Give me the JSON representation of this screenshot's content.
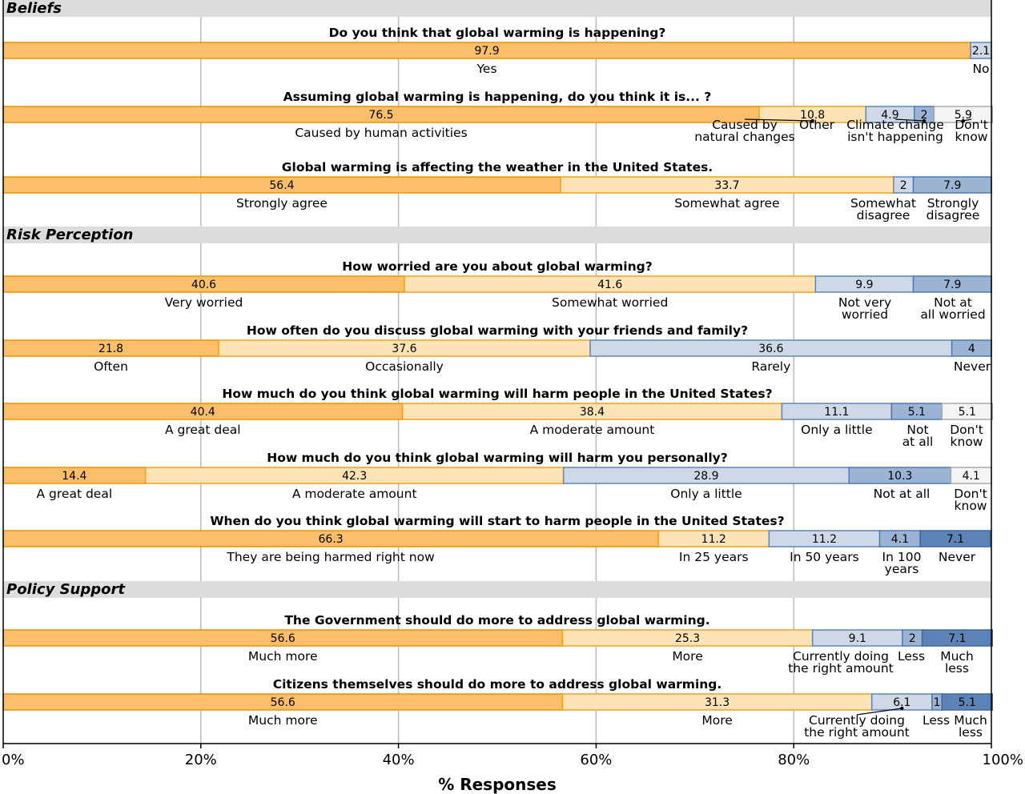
{
  "colors": {
    "c0": "#fbbf6b",
    "c0_edge": "#ef9200",
    "c1": "#fde3b6",
    "c1_edge": "#f1a21f",
    "c2": "#cfd8e6",
    "c2_edge": "#5f86b7",
    "c3": "#9cb4d4",
    "c3_edge": "#4f79ad",
    "c4": "#5c82b6",
    "c4_edge": "#3d67a0",
    "cdk": "#f4f4f4",
    "cdk_edge": "#a9a9a9",
    "section_bg": "#dcdcdc",
    "grid": "#bdbdbd"
  },
  "chart_data": {
    "type": "bar",
    "orientation": "horizontal-stacked",
    "xlabel": "% Responses",
    "xlim": [
      0,
      100
    ],
    "xticks": [
      "0%",
      "20%",
      "40%",
      "60%",
      "80%",
      "100%"
    ],
    "grid": true,
    "sections": [
      {
        "name": "Beliefs",
        "questions": [
          {
            "title": "Do you think that global warming is happening?",
            "segments": [
              {
                "value": 97.9,
                "label": [
                  "Yes"
                ],
                "style": "c0"
              },
              {
                "value": 2.1,
                "label": [
                  "No"
                ],
                "style": "c2"
              }
            ]
          },
          {
            "title": "Assuming global warming is happening, do you think it is... ?",
            "segments": [
              {
                "value": 76.5,
                "label": [
                  "Caused by human activities"
                ],
                "style": "c0"
              },
              {
                "value": 10.8,
                "label": [
                  "Caused by",
                  "natural changes"
                ],
                "style": "c1"
              },
              {
                "value": 4.9,
                "label": [
                  "Other"
                ],
                "style": "c2"
              },
              {
                "value": 2,
                "label": [
                  "Climate change",
                  "isn't happening"
                ],
                "style": "c3"
              },
              {
                "value": 5.9,
                "label": [
                  "Don't",
                  "know"
                ],
                "style": "cdk"
              }
            ]
          },
          {
            "title": "Global warming is affecting the weather in the United States.",
            "segments": [
              {
                "value": 56.4,
                "label": [
                  "Strongly agree"
                ],
                "style": "c0"
              },
              {
                "value": 33.7,
                "label": [
                  "Somewhat agree"
                ],
                "style": "c1"
              },
              {
                "value": 2,
                "label": [
                  "Somewhat",
                  "disagree"
                ],
                "style": "c2"
              },
              {
                "value": 7.9,
                "label": [
                  "Strongly",
                  "disagree"
                ],
                "style": "c3"
              }
            ]
          }
        ]
      },
      {
        "name": "Risk Perception",
        "questions": [
          {
            "title": "How worried are you about global warming?",
            "segments": [
              {
                "value": 40.6,
                "label": [
                  "Very worried"
                ],
                "style": "c0"
              },
              {
                "value": 41.6,
                "label": [
                  "Somewhat worried"
                ],
                "style": "c1"
              },
              {
                "value": 9.9,
                "label": [
                  "Not very",
                  "worried"
                ],
                "style": "c2"
              },
              {
                "value": 7.9,
                "label": [
                  "Not at",
                  "all worried"
                ],
                "style": "c3"
              }
            ]
          },
          {
            "title": "How often do you discuss global warming with your friends and family?",
            "segments": [
              {
                "value": 21.8,
                "label": [
                  "Often"
                ],
                "style": "c0"
              },
              {
                "value": 37.6,
                "label": [
                  "Occasionally"
                ],
                "style": "c1"
              },
              {
                "value": 36.6,
                "label": [
                  "Rarely"
                ],
                "style": "c2"
              },
              {
                "value": 4.0,
                "label": [
                  "Never"
                ],
                "style": "c3"
              }
            ]
          },
          {
            "title": "How much do you think global warming will harm people in the United States?",
            "segments": [
              {
                "value": 40.4,
                "label": [
                  "A great deal"
                ],
                "style": "c0"
              },
              {
                "value": 38.4,
                "label": [
                  "A moderate amount"
                ],
                "style": "c1"
              },
              {
                "value": 11.1,
                "label": [
                  "Only a little"
                ],
                "style": "c2"
              },
              {
                "value": 5.1,
                "label": [
                  "Not",
                  "at all"
                ],
                "style": "c3"
              },
              {
                "value": 5.1,
                "label": [
                  "Don't",
                  "know"
                ],
                "style": "cdk"
              }
            ]
          },
          {
            "title": "How much do you think global warming will harm you personally?",
            "segments": [
              {
                "value": 14.4,
                "label": [
                  "A great deal"
                ],
                "style": "c0"
              },
              {
                "value": 42.3,
                "label": [
                  "A moderate amount"
                ],
                "style": "c1"
              },
              {
                "value": 28.9,
                "label": [
                  "Only a little"
                ],
                "style": "c2"
              },
              {
                "value": 10.3,
                "label": [
                  "Not at all"
                ],
                "style": "c3"
              },
              {
                "value": 4.1,
                "label": [
                  "Don't",
                  "know"
                ],
                "style": "cdk"
              }
            ]
          },
          {
            "title": "When do you think global warming will start to harm people in the United States?",
            "segments": [
              {
                "value": 66.3,
                "label": [
                  "They are being harmed right now"
                ],
                "style": "c0"
              },
              {
                "value": 11.2,
                "label": [
                  "In 25 years"
                ],
                "style": "c1"
              },
              {
                "value": 11.2,
                "label": [
                  "In 50 years"
                ],
                "style": "c2"
              },
              {
                "value": 4.1,
                "label": [
                  "In 100",
                  "years"
                ],
                "style": "c3"
              },
              {
                "value": 7.1,
                "label": [
                  "Never"
                ],
                "style": "c4"
              }
            ]
          }
        ]
      },
      {
        "name": "Policy Support",
        "questions": [
          {
            "title": "The Government should do more to address global warming.",
            "segments": [
              {
                "value": 56.6,
                "label": [
                  "Much more"
                ],
                "style": "c0"
              },
              {
                "value": 25.3,
                "label": [
                  "More"
                ],
                "style": "c1"
              },
              {
                "value": 9.1,
                "label": [
                  "Currently doing",
                  "the right amount"
                ],
                "style": "c2"
              },
              {
                "value": 2,
                "label": [
                  "Less"
                ],
                "style": "c3"
              },
              {
                "value": 7.1,
                "label": [
                  "Much",
                  "less"
                ],
                "style": "c4"
              }
            ]
          },
          {
            "title": "Citizens themselves should do more to address global warming.",
            "segments": [
              {
                "value": 56.6,
                "label": [
                  "Much more"
                ],
                "style": "c0"
              },
              {
                "value": 31.3,
                "label": [
                  "More"
                ],
                "style": "c1"
              },
              {
                "value": 6.1,
                "label": [
                  "Currently doing",
                  "the right amount"
                ],
                "style": "c2"
              },
              {
                "value": 1,
                "label": [
                  "Less"
                ],
                "style": "c3"
              },
              {
                "value": 5.1,
                "label": [
                  "Much",
                  "less"
                ],
                "style": "c4"
              }
            ]
          }
        ]
      }
    ]
  }
}
